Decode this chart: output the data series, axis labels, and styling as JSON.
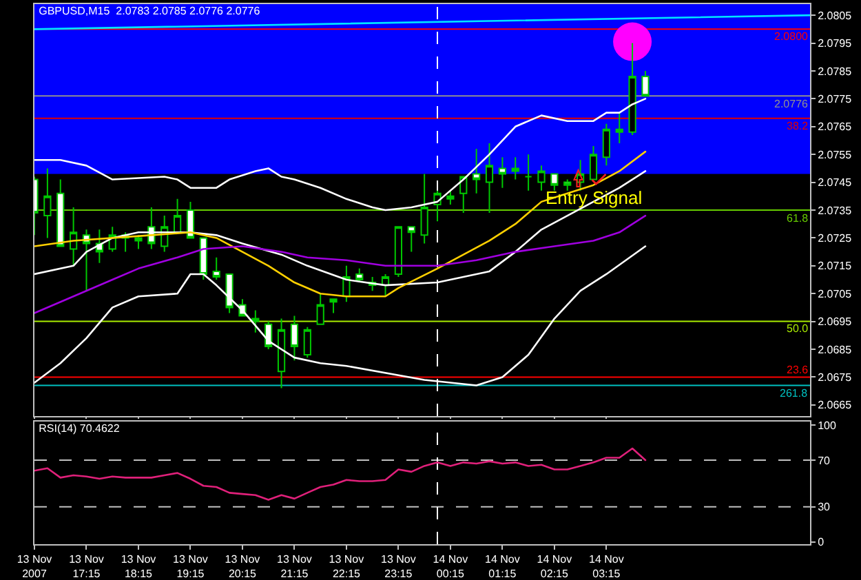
{
  "chart_data": [
    {
      "type": "candlestick",
      "title": "GBPUSD,M15  2.0783 2.0785 2.0776 2.0776",
      "x": [
        "2007-11-13T16:15",
        "2007-11-13T16:30",
        "2007-11-13T16:45",
        "2007-11-13T17:00",
        "2007-11-13T17:15",
        "2007-11-13T17:30",
        "2007-11-13T17:45",
        "2007-11-13T18:00",
        "2007-11-13T18:15",
        "2007-11-13T18:30",
        "2007-11-13T18:45",
        "2007-11-13T19:00",
        "2007-11-13T19:15",
        "2007-11-13T19:30",
        "2007-11-13T19:45",
        "2007-11-13T20:00",
        "2007-11-13T20:15",
        "2007-11-13T20:30",
        "2007-11-13T20:45",
        "2007-11-13T21:00",
        "2007-11-13T21:15",
        "2007-11-13T21:30",
        "2007-11-13T21:45",
        "2007-11-13T22:00",
        "2007-11-13T22:15",
        "2007-11-13T22:30",
        "2007-11-13T22:45",
        "2007-11-13T23:00",
        "2007-11-13T23:15",
        "2007-11-13T23:30",
        "2007-11-13T23:45",
        "2007-11-14T00:00",
        "2007-11-14T00:15",
        "2007-11-14T00:30",
        "2007-11-14T00:45",
        "2007-11-14T01:00",
        "2007-11-14T01:15",
        "2007-11-14T01:30",
        "2007-11-14T01:45",
        "2007-11-14T02:00",
        "2007-11-14T02:15",
        "2007-11-14T02:30",
        "2007-11-14T02:45",
        "2007-11-14T03:00",
        "2007-11-14T03:15",
        "2007-11-14T03:30",
        "2007-11-14T03:45",
        "2007-11-14T04:00"
      ],
      "ohlc": [
        [
          2.0746,
          2.0747,
          2.0726,
          2.0734
        ],
        [
          2.0733,
          2.075,
          2.0725,
          2.074
        ],
        [
          2.0741,
          2.0746,
          2.0722,
          2.0722
        ],
        [
          2.0721,
          2.0736,
          2.0715,
          2.0727
        ],
        [
          2.0726,
          2.0728,
          2.0706,
          2.0723
        ],
        [
          2.0723,
          2.0728,
          2.0716,
          2.072
        ],
        [
          2.0721,
          2.0729,
          2.072,
          2.0726
        ],
        [
          2.0726,
          2.0727,
          2.072,
          2.0725
        ],
        [
          2.0724,
          2.0726,
          2.0721,
          2.0725
        ],
        [
          2.0729,
          2.0736,
          2.0721,
          2.0723
        ],
        [
          2.0722,
          2.0733,
          2.072,
          2.0729
        ],
        [
          2.0727,
          2.0739,
          2.0727,
          2.0733
        ],
        [
          2.0735,
          2.0738,
          2.0725,
          2.0725
        ],
        [
          2.0725,
          2.0725,
          2.071,
          2.0712
        ],
        [
          2.0713,
          2.0718,
          2.071,
          2.0711
        ],
        [
          2.0712,
          2.0712,
          2.0698,
          2.07
        ],
        [
          2.0701,
          2.0703,
          2.0697,
          2.0697
        ],
        [
          2.0696,
          2.0699,
          2.0691,
          2.0695
        ],
        [
          2.0694,
          2.0695,
          2.0685,
          2.0686
        ],
        [
          2.0677,
          2.0696,
          2.0671,
          2.0692
        ],
        [
          2.0694,
          2.0697,
          2.0681,
          2.0686
        ],
        [
          2.0683,
          2.0693,
          2.0682,
          2.0692
        ],
        [
          2.0694,
          2.0705,
          2.0694,
          2.0701
        ],
        [
          2.0702,
          2.0703,
          2.0698,
          2.0703
        ],
        [
          2.0704,
          2.0715,
          2.0702,
          2.0711
        ],
        [
          2.0712,
          2.0714,
          2.0709,
          2.071
        ],
        [
          2.0709,
          2.0711,
          2.0706,
          2.0708
        ],
        [
          2.0708,
          2.0712,
          2.0704,
          2.0711
        ],
        [
          2.0712,
          2.0729,
          2.0711,
          2.0729
        ],
        [
          2.0729,
          2.0729,
          2.072,
          2.0727
        ],
        [
          2.0726,
          2.0748,
          2.0723,
          2.0736
        ],
        [
          2.0737,
          2.0742,
          2.0731,
          2.0741
        ],
        [
          2.0739,
          2.0742,
          2.0737,
          2.074
        ],
        [
          2.0741,
          2.0747,
          2.0734,
          2.0747
        ],
        [
          2.0748,
          2.0757,
          2.0741,
          2.0746
        ],
        [
          2.0745,
          2.0759,
          2.0734,
          2.0751
        ],
        [
          2.075,
          2.0754,
          2.0743,
          2.0748
        ],
        [
          2.0749,
          2.0754,
          2.0746,
          2.075
        ],
        [
          2.0747,
          2.0755,
          2.0742,
          2.0747
        ],
        [
          2.0745,
          2.0751,
          2.0742,
          2.0749
        ],
        [
          2.0748,
          2.0748,
          2.0742,
          2.0744
        ],
        [
          2.0745,
          2.0746,
          2.0742,
          2.0744
        ],
        [
          2.0745,
          2.0753,
          2.0742,
          2.0748
        ],
        [
          2.0746,
          2.0758,
          2.0746,
          2.0755
        ],
        [
          2.0754,
          2.0766,
          2.0751,
          2.0764
        ],
        [
          2.0764,
          2.077,
          2.0759,
          2.0763
        ],
        [
          2.0763,
          2.0795,
          2.0762,
          2.0783
        ],
        [
          2.0783,
          2.0785,
          2.0776,
          2.0776
        ]
      ],
      "series": [
        {
          "type": "line",
          "color": "#ffffff",
          "x": [
            "2007-11-13T16:15",
            "2007-11-13T16:45",
            "2007-11-13T17:15",
            "2007-11-13T17:45",
            "2007-11-13T18:45",
            "2007-11-13T19:00",
            "2007-11-13T19:15",
            "2007-11-13T19:45",
            "2007-11-13T20:00",
            "2007-11-13T20:30",
            "2007-11-13T20:45",
            "2007-11-13T21:00",
            "2007-11-13T21:15",
            "2007-11-13T21:45",
            "2007-11-13T22:15",
            "2007-11-13T22:45",
            "2007-11-13T23:00",
            "2007-11-13T23:30",
            "2007-11-14T00:00",
            "2007-11-14T00:30",
            "2007-11-14T01:00",
            "2007-11-14T01:30",
            "2007-11-14T02:00",
            "2007-11-14T02:30",
            "2007-11-14T03:00",
            "2007-11-14T03:15",
            "2007-11-14T03:30",
            "2007-11-14T03:45",
            "2007-11-14T04:00"
          ],
          "values": [
            2.0753,
            2.0753,
            2.0751,
            2.0746,
            2.0747,
            2.0746,
            2.0743,
            2.0743,
            2.0746,
            2.0749,
            2.075,
            2.0747,
            2.0746,
            2.0743,
            2.0739,
            2.0736,
            2.0735,
            2.0736,
            2.0738,
            2.0746,
            2.0755,
            2.0765,
            2.0769,
            2.0767,
            2.0767,
            2.077,
            2.077,
            2.0773,
            2.0775
          ]
        },
        {
          "type": "line",
          "color": "#ffffff",
          "x": [
            "2007-11-13T16:15",
            "2007-11-13T17:00",
            "2007-11-13T17:15",
            "2007-11-13T17:45",
            "2007-11-13T18:15",
            "2007-11-13T18:45",
            "2007-11-13T19:15",
            "2007-11-13T19:45",
            "2007-11-13T20:15",
            "2007-11-13T21:00",
            "2007-11-13T21:30",
            "2007-11-13T22:15",
            "2007-11-13T23:00",
            "2007-11-14T00:00",
            "2007-11-14T00:30",
            "2007-11-14T01:00",
            "2007-11-14T01:30",
            "2007-11-14T02:00",
            "2007-11-14T02:30",
            "2007-11-14T03:00",
            "2007-11-14T03:30",
            "2007-11-14T04:00"
          ],
          "values": [
            2.0712,
            2.0715,
            2.072,
            2.0725,
            2.0727,
            2.0727,
            2.0727,
            2.0726,
            2.0723,
            2.0719,
            2.0715,
            2.071,
            2.0708,
            2.0709,
            2.0711,
            2.0713,
            2.072,
            2.0728,
            2.0733,
            2.0738,
            2.0743,
            2.0749
          ]
        },
        {
          "type": "line",
          "color": "#ffd000",
          "x": [
            "2007-11-13T16:15",
            "2007-11-13T17:00",
            "2007-11-13T18:30",
            "2007-11-13T19:15",
            "2007-11-13T19:45",
            "2007-11-13T20:15",
            "2007-11-13T20:45",
            "2007-11-13T21:15",
            "2007-11-13T21:45",
            "2007-11-13T22:15",
            "2007-11-13T23:00",
            "2007-11-13T23:15",
            "2007-11-14T00:00",
            "2007-11-14T00:30",
            "2007-11-14T01:00",
            "2007-11-14T01:30",
            "2007-11-14T02:00",
            "2007-11-14T02:30",
            "2007-11-14T03:00",
            "2007-11-14T03:30",
            "2007-11-14T04:00"
          ],
          "values": [
            2.0722,
            2.0724,
            2.0726,
            2.0727,
            2.0725,
            2.072,
            2.0715,
            2.0709,
            2.0705,
            2.0704,
            2.0704,
            2.0707,
            2.0714,
            2.0719,
            2.0724,
            2.073,
            2.0738,
            2.0741,
            2.0744,
            2.0749,
            2.0756
          ]
        },
        {
          "type": "line",
          "color": "#a000e0",
          "x": [
            "2007-11-13T16:15",
            "2007-11-13T17:00",
            "2007-11-13T17:45",
            "2007-11-13T18:15",
            "2007-11-13T19:00",
            "2007-11-13T19:30",
            "2007-11-13T20:15",
            "2007-11-13T21:00",
            "2007-11-13T21:30",
            "2007-11-13T22:15",
            "2007-11-13T23:00",
            "2007-11-14T00:00",
            "2007-11-14T00:45",
            "2007-11-14T01:30",
            "2007-11-14T02:15",
            "2007-11-14T03:00",
            "2007-11-14T03:30",
            "2007-11-14T04:00"
          ],
          "values": [
            2.0698,
            2.0704,
            2.071,
            2.0714,
            2.0718,
            2.0721,
            2.0722,
            2.072,
            2.0718,
            2.0717,
            2.0715,
            2.0715,
            2.0717,
            2.072,
            2.0722,
            2.0724,
            2.0727,
            2.0733
          ]
        },
        {
          "type": "line",
          "color": "#ffffff",
          "x": [
            "2007-11-13T16:15",
            "2007-11-13T16:45",
            "2007-11-13T17:15",
            "2007-11-13T17:45",
            "2007-11-13T18:15",
            "2007-11-13T19:00",
            "2007-11-13T19:15",
            "2007-11-13T19:30",
            "2007-11-13T19:45",
            "2007-11-13T20:15",
            "2007-11-13T20:45",
            "2007-11-13T21:15",
            "2007-11-13T21:45",
            "2007-11-13T22:15",
            "2007-11-13T23:45",
            "2007-11-14T00:45",
            "2007-11-14T01:15",
            "2007-11-14T01:45",
            "2007-11-14T02:15",
            "2007-11-14T02:45",
            "2007-11-14T03:15",
            "2007-11-14T04:00"
          ],
          "values": [
            2.0673,
            2.068,
            2.0689,
            2.07,
            2.0704,
            2.0705,
            2.0712,
            2.0712,
            2.0708,
            2.0699,
            2.0688,
            2.0682,
            2.068,
            2.0679,
            2.0674,
            2.0672,
            2.0675,
            2.0683,
            2.0696,
            2.0706,
            2.0712,
            2.0722
          ]
        },
        {
          "type": "line",
          "color": "#00e5ff",
          "x": [
            "2007-11-13T16:15",
            "2007-11-14T07:10"
          ],
          "values": [
            2.08,
            2.0805
          ]
        }
      ],
      "xlim": [
        "2007-11-13T16:15",
        "2007-11-14T07:10"
      ],
      "xticks": [
        {
          "value": "2007-11-13T16:15",
          "label": null
        },
        {
          "value": "2007-11-13T17:15",
          "label": null
        },
        {
          "value": "2007-11-13T18:15",
          "label": null
        },
        {
          "value": "2007-11-13T19:15",
          "label": null
        },
        {
          "value": "2007-11-13T20:15",
          "label": null
        },
        {
          "value": "2007-11-13T21:15",
          "label": null
        },
        {
          "value": "2007-11-13T22:15",
          "label": null
        },
        {
          "value": "2007-11-13T23:15",
          "label": null
        },
        {
          "value": "2007-11-14T00:15",
          "label": null
        },
        {
          "value": "2007-11-14T01:15",
          "label": null
        },
        {
          "value": "2007-11-14T02:15",
          "label": null
        },
        {
          "value": "2007-11-14T03:15",
          "label": null
        }
      ],
      "ylim": [
        2.0661,
        2.0809
      ],
      "yticks": [
        2.0665,
        2.0675,
        2.0685,
        2.0695,
        2.0705,
        2.0715,
        2.0725,
        2.0735,
        2.0745,
        2.0755,
        2.0765,
        2.0775,
        2.0785,
        2.0795,
        2.0805
      ],
      "tick_labels": "y",
      "grid": false,
      "bands": [
        {
          "axis": "y",
          "from": 2.0748,
          "to": 2.0809,
          "color": "#0000ff"
        }
      ],
      "ref_lines": [
        {
          "axis": "y",
          "value": 2.08,
          "label": "2.0800",
          "color": "#ff0000"
        },
        {
          "axis": "y",
          "value": 2.0776,
          "label": "2.0776",
          "color": "#909090"
        },
        {
          "axis": "y",
          "value": 2.0768,
          "color": "#e00000"
        },
        {
          "axis": "y",
          "value": 2.0735,
          "color": "#66cc00"
        },
        {
          "axis": "y",
          "value": 2.0695,
          "color": "#aaee00"
        },
        {
          "axis": "y",
          "value": 2.0675,
          "color": "#ff0000"
        },
        {
          "axis": "y",
          "value": 2.0672,
          "color": "#00c0c0"
        },
        {
          "axis": "x",
          "value": "2007-11-14T00:00",
          "color": "#ffffff",
          "line_style": "dashed"
        }
      ],
      "annotations": [
        {
          "text": "Entry Signal",
          "x": "2007-11-14T03:00",
          "y": 2.0734
        },
        {
          "text": "38.2",
          "x": "2007-11-14T07:10",
          "y": 2.0768
        },
        {
          "text": "61.8",
          "x": "2007-11-14T07:10",
          "y": 2.0735
        },
        {
          "text": "50.0",
          "x": "2007-11-14T07:10",
          "y": 2.0695
        },
        {
          "text": "23.6",
          "x": "2007-11-14T07:10",
          "y": 2.0675
        },
        {
          "text": "261.8",
          "x": "2007-11-14T07:10",
          "y": 2.0672
        }
      ]
    },
    {
      "type": "line",
      "title": "RSI(14) 70.4622",
      "x": [
        "2007-11-13T16:15",
        "2007-11-13T16:30",
        "2007-11-13T16:45",
        "2007-11-13T17:00",
        "2007-11-13T17:15",
        "2007-11-13T17:30",
        "2007-11-13T17:45",
        "2007-11-13T18:00",
        "2007-11-13T18:15",
        "2007-11-13T18:30",
        "2007-11-13T18:45",
        "2007-11-13T19:00",
        "2007-11-13T19:15",
        "2007-11-13T19:30",
        "2007-11-13T19:45",
        "2007-11-13T20:00",
        "2007-11-13T20:15",
        "2007-11-13T20:30",
        "2007-11-13T20:45",
        "2007-11-13T21:00",
        "2007-11-13T21:15",
        "2007-11-13T21:30",
        "2007-11-13T21:45",
        "2007-11-13T22:00",
        "2007-11-13T22:15",
        "2007-11-13T22:30",
        "2007-11-13T22:45",
        "2007-11-13T23:00",
        "2007-11-13T23:15",
        "2007-11-13T23:30",
        "2007-11-13T23:45",
        "2007-11-14T00:00",
        "2007-11-14T00:15",
        "2007-11-14T00:30",
        "2007-11-14T00:45",
        "2007-11-14T01:00",
        "2007-11-14T01:15",
        "2007-11-14T01:30",
        "2007-11-14T01:45",
        "2007-11-14T02:00",
        "2007-11-14T02:15",
        "2007-11-14T02:30",
        "2007-11-14T02:45",
        "2007-11-14T03:00",
        "2007-11-14T03:15",
        "2007-11-14T03:30",
        "2007-11-14T03:45",
        "2007-11-14T04:00"
      ],
      "series": [
        {
          "color": "#e0207a",
          "values": [
            61,
            63,
            55,
            57,
            56,
            54,
            56,
            55,
            55,
            55,
            57,
            59,
            54,
            48,
            47,
            42,
            41,
            40,
            36,
            40,
            37,
            42,
            47,
            49,
            53,
            52,
            52,
            53,
            62,
            60,
            65,
            68,
            65,
            68,
            67,
            69,
            67,
            68,
            65,
            66,
            62,
            62,
            65,
            68,
            72,
            72,
            80,
            70
          ]
        }
      ],
      "xlim": [
        "2007-11-13T16:15",
        "2007-11-14T07:10"
      ],
      "xticks": [
        {
          "value": "2007-11-13T16:15",
          "label": "13 Nov 2007"
        },
        {
          "value": "2007-11-13T17:15",
          "label": "13 Nov 17:15"
        },
        {
          "value": "2007-11-13T18:15",
          "label": "13 Nov 18:15"
        },
        {
          "value": "2007-11-13T19:15",
          "label": "13 Nov 19:15"
        },
        {
          "value": "2007-11-13T20:15",
          "label": "13 Nov 20:15"
        },
        {
          "value": "2007-11-13T21:15",
          "label": "13 Nov 21:15"
        },
        {
          "value": "2007-11-13T22:15",
          "label": "13 Nov 22:15"
        },
        {
          "value": "2007-11-13T23:15",
          "label": "13 Nov 23:15"
        },
        {
          "value": "2007-11-14T00:15",
          "label": "14 Nov 00:15"
        },
        {
          "value": "2007-11-14T01:15",
          "label": "14 Nov 01:15"
        },
        {
          "value": "2007-11-14T02:15",
          "label": "14 Nov 02:15"
        },
        {
          "value": "2007-11-14T03:15",
          "label": "14 Nov 03:15"
        }
      ],
      "ylim": [
        -2,
        103
      ],
      "yticks": [
        0,
        30,
        70,
        100
      ],
      "grid": false,
      "ref_lines": [
        {
          "axis": "y",
          "value": 70,
          "color": "#c0c0c0",
          "line_style": "dashed"
        },
        {
          "axis": "y",
          "value": 30,
          "color": "#c0c0c0",
          "line_style": "dashed"
        },
        {
          "axis": "x",
          "value": "2007-11-14T00:00",
          "color": "#ffffff",
          "line_style": "dashed"
        }
      ]
    }
  ]
}
